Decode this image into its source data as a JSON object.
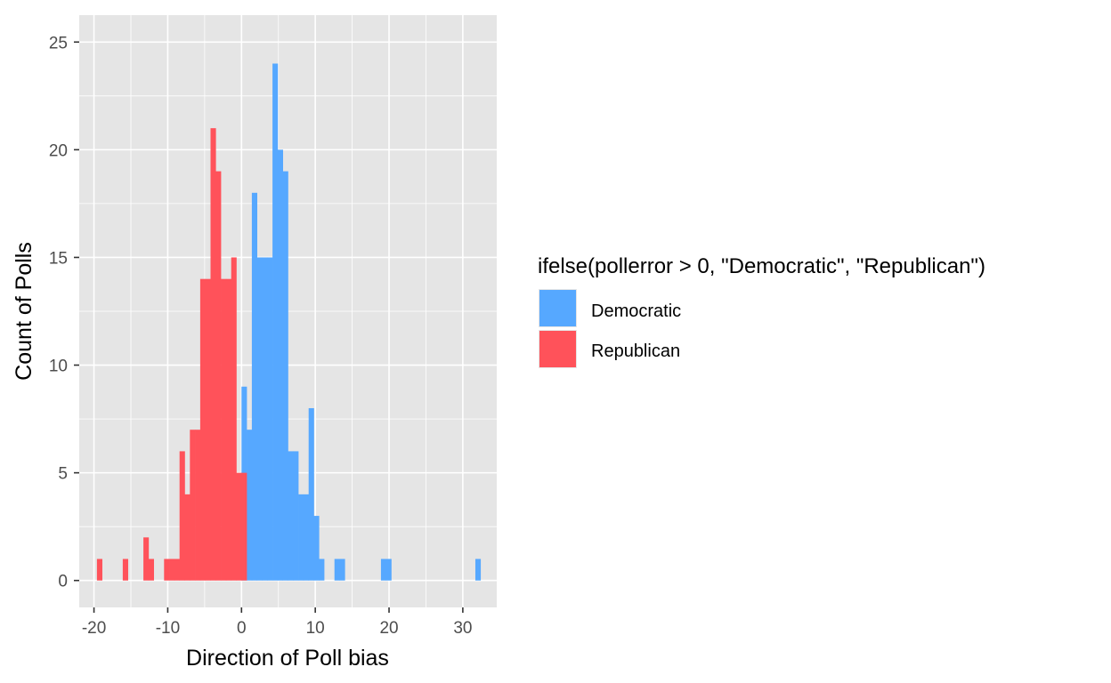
{
  "chart_data": {
    "type": "bar",
    "xlabel": "Direction of Poll bias",
    "ylabel": "Count of Polls",
    "xlim": [
      -22,
      34.6
    ],
    "ylim": [
      -1.25,
      26.25
    ],
    "x_ticks": [
      -20,
      -10,
      0,
      10,
      20,
      30
    ],
    "x_tick_labels": [
      "-20",
      "-10",
      "0",
      "10",
      "20",
      "30"
    ],
    "y_ticks": [
      0,
      5,
      10,
      15,
      20,
      25
    ],
    "y_tick_labels": [
      "0",
      "5",
      "10",
      "15",
      "20",
      "25"
    ],
    "grid": true,
    "legend": {
      "title": "ifelse(pollerror > 0, \"Democratic\", \"Republican\")",
      "position": "right"
    },
    "colors": {
      "panel_bg": "#e5e5e5",
      "grid": "#ffffff",
      "Democratic": "#56a8ff",
      "Republican": "#ff525a"
    },
    "series": [
      {
        "name": "Democratic",
        "bins": [
          {
            "x0": 0.0,
            "x1": 0.7,
            "y": 9
          },
          {
            "x0": 0.7,
            "x1": 1.4,
            "y": 7
          },
          {
            "x0": 1.4,
            "x1": 2.1,
            "y": 18
          },
          {
            "x0": 2.1,
            "x1": 2.8,
            "y": 15
          },
          {
            "x0": 2.8,
            "x1": 3.5,
            "y": 15
          },
          {
            "x0": 3.5,
            "x1": 4.2,
            "y": 15
          },
          {
            "x0": 4.2,
            "x1": 4.9,
            "y": 24
          },
          {
            "x0": 4.9,
            "x1": 5.6,
            "y": 20
          },
          {
            "x0": 5.6,
            "x1": 6.3,
            "y": 19
          },
          {
            "x0": 6.3,
            "x1": 7.0,
            "y": 6
          },
          {
            "x0": 7.0,
            "x1": 7.7,
            "y": 6
          },
          {
            "x0": 7.7,
            "x1": 8.4,
            "y": 4
          },
          {
            "x0": 8.4,
            "x1": 9.1,
            "y": 4
          },
          {
            "x0": 9.1,
            "x1": 9.8,
            "y": 8
          },
          {
            "x0": 9.8,
            "x1": 10.5,
            "y": 3
          },
          {
            "x0": 10.5,
            "x1": 11.2,
            "y": 1
          },
          {
            "x0": 12.6,
            "x1": 13.3,
            "y": 1
          },
          {
            "x0": 13.3,
            "x1": 14.0,
            "y": 1
          },
          {
            "x0": 18.9,
            "x1": 19.6,
            "y": 1
          },
          {
            "x0": 19.6,
            "x1": 20.3,
            "y": 1
          },
          {
            "x0": 31.7,
            "x1": 32.4,
            "y": 1
          }
        ]
      },
      {
        "name": "Republican",
        "bins": [
          {
            "x0": -19.6,
            "x1": -18.9,
            "y": 1
          },
          {
            "x0": -16.1,
            "x1": -15.4,
            "y": 1
          },
          {
            "x0": -13.3,
            "x1": -12.6,
            "y": 2
          },
          {
            "x0": -12.6,
            "x1": -11.9,
            "y": 1
          },
          {
            "x0": -10.5,
            "x1": -9.8,
            "y": 1
          },
          {
            "x0": -9.8,
            "x1": -9.1,
            "y": 1
          },
          {
            "x0": -9.1,
            "x1": -8.4,
            "y": 1
          },
          {
            "x0": -8.4,
            "x1": -7.7,
            "y": 6
          },
          {
            "x0": -7.7,
            "x1": -7.0,
            "y": 4
          },
          {
            "x0": -7.0,
            "x1": -6.3,
            "y": 7
          },
          {
            "x0": -6.3,
            "x1": -5.6,
            "y": 7
          },
          {
            "x0": -5.6,
            "x1": -4.9,
            "y": 14
          },
          {
            "x0": -4.9,
            "x1": -4.2,
            "y": 14
          },
          {
            "x0": -4.2,
            "x1": -3.5,
            "y": 21
          },
          {
            "x0": -3.5,
            "x1": -2.8,
            "y": 19
          },
          {
            "x0": -2.8,
            "x1": -2.1,
            "y": 14
          },
          {
            "x0": -2.1,
            "x1": -1.4,
            "y": 14
          },
          {
            "x0": -1.4,
            "x1": -0.7,
            "y": 15
          },
          {
            "x0": -0.7,
            "x1": 0.0,
            "y": 5
          },
          {
            "x0": 0.0,
            "x1": 0.7,
            "y": 5
          }
        ]
      }
    ]
  }
}
